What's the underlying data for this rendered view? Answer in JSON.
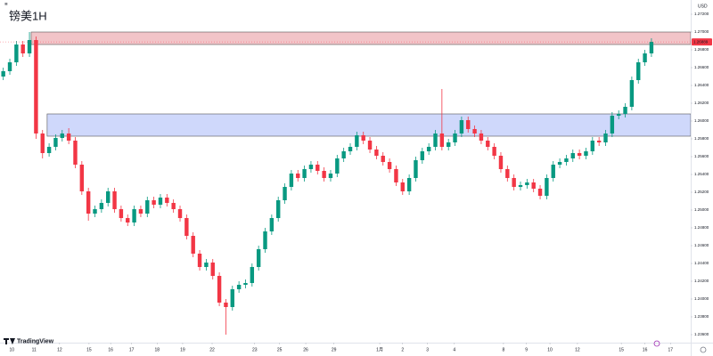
{
  "chart_data": {
    "type": "candlestick",
    "title": "镑美1H",
    "currency": "USD",
    "brand": "TradingView",
    "up_color": "#089981",
    "down_color": "#f23645",
    "xlim": [
      -0.5,
      105
    ],
    "ylim": [
      1.2351,
      1.2736
    ],
    "xticks": [
      {
        "value": 1.3,
        "label": "10"
      },
      {
        "value": 4.7,
        "label": "11"
      },
      {
        "value": 8.6,
        "label": "12"
      },
      {
        "value": 13.1,
        "label": "15"
      },
      {
        "value": 16.4,
        "label": "16"
      },
      {
        "value": 19.6,
        "label": "17"
      },
      {
        "value": 23.5,
        "label": "18"
      },
      {
        "value": 27.4,
        "label": "19"
      },
      {
        "value": 31.9,
        "label": "22"
      },
      {
        "value": 38.4,
        "label": "23"
      },
      {
        "value": 42.2,
        "label": "25"
      },
      {
        "value": 46.2,
        "label": "26"
      },
      {
        "value": 50.5,
        "label": "29"
      },
      {
        "value": 57.5,
        "label": "1月"
      },
      {
        "value": 61.0,
        "label": "2"
      },
      {
        "value": 64.8,
        "label": "3"
      },
      {
        "value": 68.9,
        "label": "4"
      },
      {
        "value": 76.4,
        "label": "8"
      },
      {
        "value": 79.9,
        "label": "9"
      },
      {
        "value": 83.5,
        "label": "10"
      },
      {
        "value": 87.7,
        "label": "12"
      },
      {
        "value": 94.4,
        "label": "15"
      },
      {
        "value": 98.0,
        "label": "16"
      },
      {
        "value": 101.9,
        "label": "17"
      }
    ],
    "yticks": [
      {
        "value": 1.236,
        "label": "1.23600"
      },
      {
        "value": 1.238,
        "label": "1.23800"
      },
      {
        "value": 1.24,
        "label": "1.24000"
      },
      {
        "value": 1.242,
        "label": "1.24200"
      },
      {
        "value": 1.244,
        "label": "1.24400"
      },
      {
        "value": 1.246,
        "label": "1.24600"
      },
      {
        "value": 1.248,
        "label": "1.24800"
      },
      {
        "value": 1.25,
        "label": "1.25000"
      },
      {
        "value": 1.252,
        "label": "1.25200"
      },
      {
        "value": 1.254,
        "label": "1.25400"
      },
      {
        "value": 1.256,
        "label": "1.25600"
      },
      {
        "value": 1.258,
        "label": "1.25800"
      },
      {
        "value": 1.26,
        "label": "1.26000"
      },
      {
        "value": 1.262,
        "label": "1.26200"
      },
      {
        "value": 1.264,
        "label": "1.26400"
      },
      {
        "value": 1.266,
        "label": "1.26600"
      },
      {
        "value": 1.268,
        "label": "1.26800"
      },
      {
        "value": 1.27,
        "label": "1.27000"
      },
      {
        "value": 1.272,
        "label": "1.27200"
      }
    ],
    "price_tag": 1.26889,
    "zones": [
      {
        "start": 4.26,
        "top": 1.27,
        "bottom": 1.2686,
        "color": "#f2c4c8"
      },
      {
        "start": 6.7,
        "top": 1.2608,
        "bottom": 1.2583,
        "color": "#cfd8fb"
      }
    ],
    "open": [
      1.265,
      1.2656,
      1.2666,
      1.2686,
      1.2676,
      1.2691,
      1.2586,
      1.2564,
      1.2571,
      1.2581,
      1.2586,
      1.2578,
      1.2551,
      1.2521,
      1.2496,
      1.2501,
      1.2508,
      1.2521,
      1.2501,
      1.2491,
      1.2486,
      1.2501,
      1.2496,
      1.2511,
      1.2506,
      1.2514,
      1.2508,
      1.2501,
      1.2491,
      1.2471,
      1.2451,
      1.2436,
      1.2441,
      1.2426,
      1.2396,
      1.2391,
      1.2411,
      1.2416,
      1.2418,
      1.2436,
      1.2456,
      1.2476,
      1.2491,
      1.2511,
      1.2526,
      1.2541,
      1.2536,
      1.2546,
      1.2551,
      1.2544,
      1.2536,
      1.2541,
      1.2558,
      1.2566,
      1.2571,
      1.2584,
      1.2578,
      1.2568,
      1.2561,
      1.2554,
      1.2546,
      1.2531,
      1.2521,
      1.2536,
      1.2556,
      1.2566,
      1.2571,
      1.2586,
      1.2571,
      1.2576,
      1.2586,
      1.2601,
      1.2591,
      1.2586,
      1.2578,
      1.2571,
      1.2561,
      1.2546,
      1.2536,
      1.2526,
      1.2528,
      1.2531,
      1.2524,
      1.2516,
      1.2536,
      1.2551,
      1.2554,
      1.2558,
      1.2564,
      1.2561,
      1.2566,
      1.2578,
      1.2576,
      1.2586,
      1.2606,
      1.2608,
      1.2616,
      1.2646,
      1.2666,
      1.2676
    ],
    "high": [
      1.266,
      1.267,
      1.269,
      1.269,
      1.27,
      1.2695,
      1.259,
      1.2575,
      1.2585,
      1.259,
      1.2592,
      1.2582,
      1.2555,
      1.2525,
      1.2505,
      1.2512,
      1.2525,
      1.2525,
      1.2505,
      1.2495,
      1.2505,
      1.2505,
      1.2515,
      1.2515,
      1.2518,
      1.2518,
      1.2512,
      1.2505,
      1.2495,
      1.2475,
      1.2455,
      1.2445,
      1.2445,
      1.243,
      1.24,
      1.2415,
      1.242,
      1.2422,
      1.244,
      1.246,
      1.248,
      1.2495,
      1.2515,
      1.253,
      1.2545,
      1.2545,
      1.255,
      1.2555,
      1.2555,
      1.2548,
      1.2545,
      1.2562,
      1.257,
      1.2575,
      1.2588,
      1.2588,
      1.2582,
      1.2572,
      1.2565,
      1.2558,
      1.255,
      1.2535,
      1.254,
      1.256,
      1.257,
      1.2575,
      1.259,
      1.2636,
      1.258,
      1.259,
      1.2605,
      1.2605,
      1.2595,
      1.259,
      1.2582,
      1.2575,
      1.2565,
      1.255,
      1.254,
      1.2532,
      1.2535,
      1.2535,
      1.2528,
      1.254,
      1.2555,
      1.2558,
      1.2562,
      1.2568,
      1.2568,
      1.257,
      1.2582,
      1.2582,
      1.259,
      1.261,
      1.2612,
      1.262,
      1.265,
      1.267,
      1.268,
      1.2693
    ],
    "low": [
      1.2646,
      1.2652,
      1.2662,
      1.2672,
      1.2672,
      1.258,
      1.2558,
      1.256,
      1.2567,
      1.2577,
      1.2574,
      1.2547,
      1.2517,
      1.2488,
      1.2492,
      1.2497,
      1.2504,
      1.2497,
      1.2487,
      1.2482,
      1.2482,
      1.2492,
      1.2492,
      1.2502,
      1.2502,
      1.2504,
      1.2497,
      1.2487,
      1.2467,
      1.2447,
      1.2432,
      1.2432,
      1.2422,
      1.2392,
      1.236,
      1.2387,
      1.2407,
      1.2412,
      1.2414,
      1.2432,
      1.2452,
      1.2472,
      1.2487,
      1.2507,
      1.2522,
      1.2532,
      1.2532,
      1.2542,
      1.254,
      1.2532,
      1.2532,
      1.2537,
      1.2554,
      1.2562,
      1.2567,
      1.2574,
      1.2564,
      1.2557,
      1.255,
      1.2542,
      1.2527,
      1.2517,
      1.2517,
      1.2532,
      1.2552,
      1.2562,
      1.2567,
      1.2567,
      1.2567,
      1.2572,
      1.2582,
      1.2587,
      1.2582,
      1.2574,
      1.2567,
      1.2557,
      1.2542,
      1.2532,
      1.2522,
      1.2522,
      1.2524,
      1.252,
      1.2512,
      1.2512,
      1.2532,
      1.2547,
      1.255,
      1.2554,
      1.2557,
      1.2557,
      1.2562,
      1.2572,
      1.2572,
      1.2582,
      1.2602,
      1.2604,
      1.2612,
      1.2642,
      1.2662,
      1.2672
    ],
    "close": [
      1.2656,
      1.2666,
      1.2686,
      1.2676,
      1.2691,
      1.2586,
      1.2564,
      1.2571,
      1.2581,
      1.2586,
      1.2578,
      1.2551,
      1.2521,
      1.2496,
      1.2501,
      1.2508,
      1.2521,
      1.2501,
      1.2491,
      1.2486,
      1.2501,
      1.2496,
      1.2511,
      1.2506,
      1.2514,
      1.2508,
      1.2501,
      1.2491,
      1.2471,
      1.2451,
      1.2436,
      1.2441,
      1.2426,
      1.2396,
      1.2391,
      1.2411,
      1.2416,
      1.2418,
      1.2436,
      1.2456,
      1.2476,
      1.2491,
      1.2511,
      1.2526,
      1.2541,
      1.2536,
      1.2546,
      1.2551,
      1.2544,
      1.2536,
      1.2541,
      1.2558,
      1.2566,
      1.2571,
      1.2584,
      1.2578,
      1.2568,
      1.2561,
      1.2554,
      1.2546,
      1.2531,
      1.2521,
      1.2536,
      1.2556,
      1.2566,
      1.2571,
      1.2586,
      1.2571,
      1.2576,
      1.2586,
      1.2601,
      1.2591,
      1.2586,
      1.2578,
      1.2571,
      1.2561,
      1.2546,
      1.2536,
      1.2526,
      1.2528,
      1.2531,
      1.2524,
      1.2516,
      1.2536,
      1.2551,
      1.2554,
      1.2558,
      1.2564,
      1.2561,
      1.2566,
      1.2578,
      1.2576,
      1.2586,
      1.2606,
      1.2608,
      1.2616,
      1.2646,
      1.2666,
      1.2676,
      1.2689
    ]
  }
}
